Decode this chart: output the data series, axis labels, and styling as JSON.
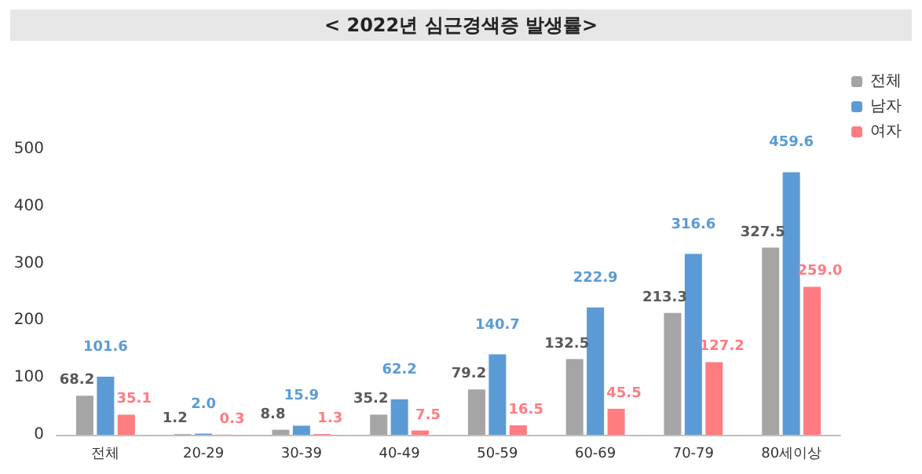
{
  "chart_data": {
    "type": "bar",
    "title": "< 2022년 심근경색증 발생률>",
    "categories": [
      "전체",
      "20-29",
      "30-39",
      "40-49",
      "50-59",
      "60-69",
      "70-79",
      "80세이상"
    ],
    "series": [
      {
        "name": "전체",
        "color": "#a5a5a5",
        "values": [
          68.2,
          1.2,
          8.8,
          35.2,
          79.2,
          132.5,
          213.3,
          327.5
        ],
        "value_labels": [
          "68.2",
          "1.2",
          "8.8",
          "35.2",
          "79.2",
          "132.5",
          "213.3",
          "327.5"
        ]
      },
      {
        "name": "남자",
        "color": "#5b9bd5",
        "values": [
          101.6,
          2.0,
          15.9,
          62.2,
          140.7,
          222.9,
          316.6,
          459.6
        ],
        "value_labels": [
          "101.6",
          "2.0",
          "15.9",
          "62.2",
          "140.7",
          "222.9",
          "316.6",
          "459.6"
        ]
      },
      {
        "name": "여자",
        "color": "#ff7c80",
        "values": [
          35.1,
          0.3,
          1.3,
          7.5,
          16.5,
          45.5,
          127.2,
          259.0
        ],
        "value_labels": [
          "35.1",
          "0.3",
          "1.3",
          "7.5",
          "16.5",
          "45.5",
          "127.2",
          "259.0"
        ]
      }
    ],
    "ylim": [
      0,
      500
    ],
    "yticks": [
      0,
      100,
      200,
      300,
      400,
      500
    ],
    "grid": false,
    "legend": "top right"
  }
}
